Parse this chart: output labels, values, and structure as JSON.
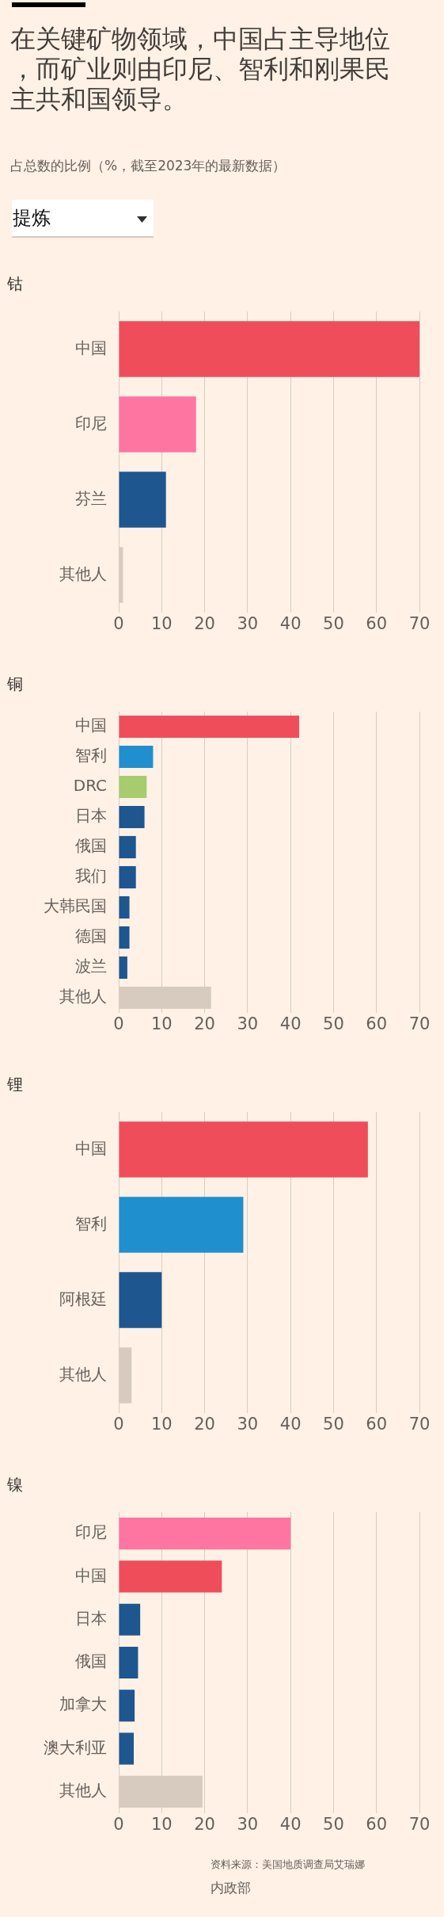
{
  "chart_data": [
    {
      "type": "other",
      "title": "在关键矿物领域，中国占主导地位，而矿业则由印尼、智利和刚果民主共和国领导。",
      "subtitle": "占总数的比例（%，截至2023年的最新数据）",
      "annotations": [
        "提炼"
      ]
    },
    {
      "type": "bar",
      "orientation": "horizontal",
      "title": "钴",
      "categories": [
        "中国",
        "印尼",
        "芬兰",
        "其他人"
      ],
      "values": [
        70,
        18,
        11,
        1
      ],
      "colors": [
        "#f04d5b",
        "#fe75a1",
        "#1e5690",
        "#d7cbc0"
      ],
      "xlim": [
        0,
        70
      ],
      "xticks": [
        0,
        10,
        20,
        30,
        40,
        50,
        60,
        70
      ],
      "grid": "x"
    },
    {
      "type": "bar",
      "orientation": "horizontal",
      "title": "铜",
      "categories": [
        "中国",
        "智利",
        "DRC",
        "日本",
        "俄国",
        "我们",
        "大韩民国",
        "德国",
        "波兰",
        "其他人"
      ],
      "values": [
        42,
        8,
        6.5,
        6,
        4,
        4,
        2.5,
        2.5,
        2,
        21.5
      ],
      "colors": [
        "#f04d5b",
        "#208fce",
        "#a6cc6e",
        "#1e5690",
        "#1e5690",
        "#1e5690",
        "#1e5690",
        "#1e5690",
        "#1e5690",
        "#d7cbc0"
      ],
      "xlim": [
        0,
        70
      ],
      "xticks": [
        0,
        10,
        20,
        30,
        40,
        50,
        60,
        70
      ],
      "grid": "x"
    },
    {
      "type": "bar",
      "orientation": "horizontal",
      "title": "锂",
      "categories": [
        "中国",
        "智利",
        "阿根廷",
        "其他人"
      ],
      "values": [
        58,
        29,
        10,
        3
      ],
      "colors": [
        "#f04d5b",
        "#208fce",
        "#1e5690",
        "#d7cbc0"
      ],
      "xlim": [
        0,
        70
      ],
      "xticks": [
        0,
        10,
        20,
        30,
        40,
        50,
        60,
        70
      ],
      "grid": "x"
    },
    {
      "type": "bar",
      "orientation": "horizontal",
      "title": "镍",
      "categories": [
        "印尼",
        "中国",
        "日本",
        "俄国",
        "加拿大",
        "澳大利亚",
        "其他人"
      ],
      "values": [
        40,
        24,
        5,
        4.5,
        3.7,
        3.5,
        19.5
      ],
      "colors": [
        "#fe75a1",
        "#f04d5b",
        "#1e5690",
        "#1e5690",
        "#1e5690",
        "#1e5690",
        "#d7cbc0"
      ],
      "xlim": [
        0,
        70
      ],
      "xticks": [
        0,
        10,
        20,
        30,
        40,
        50,
        60,
        70
      ],
      "grid": "x",
      "annotations": [
        "资料来源：美国地质调查局艾瑞娜",
        "内政部"
      ]
    }
  ]
}
